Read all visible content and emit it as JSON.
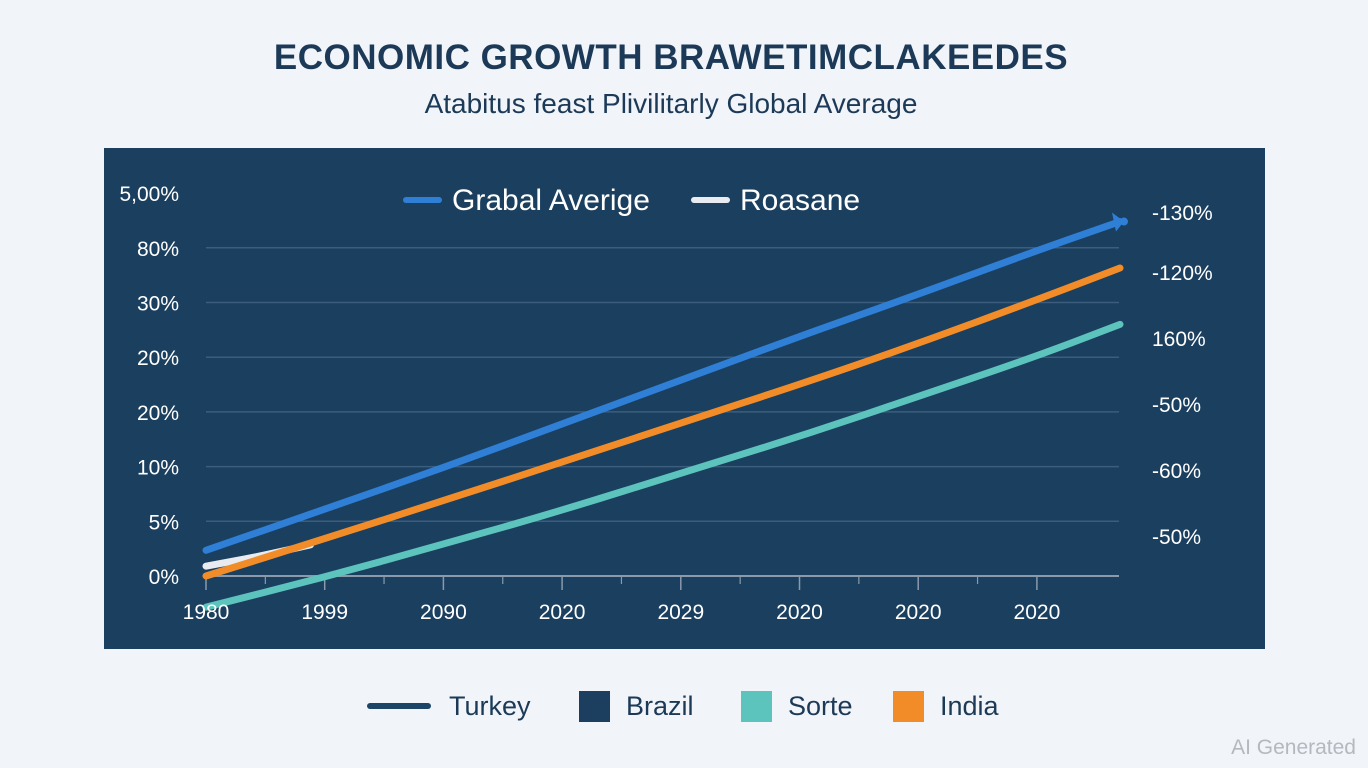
{
  "header": {
    "title": "ECONOMIC GROWTH BRAWETIMCLAKEEDES",
    "subtitle": "Atabitus feast Plivilitarly Global Average"
  },
  "watermark": "AI Generated",
  "colors": {
    "page_bg": "#f1f4f8",
    "panel_bg": "#1b3f5f",
    "global_average": "#2f7fd6",
    "roasane": "#e8ecf1",
    "india": "#f28c28",
    "sorte": "#5cc3bd",
    "brazil": "#1c3f5f",
    "turkey": "#1c4466",
    "grid": "#3c5e7c",
    "axis": "#8a9aab",
    "text_light": "#ffffff",
    "text_dark": "#1c3a57"
  },
  "chart_data": {
    "type": "line",
    "title": "ECONOMIC GROWTH BRAWETIMCLAKEEDES",
    "subtitle": "Atabitus feast Plivilitarly Global Average",
    "xlabel": "",
    "ylabel": "",
    "x_tick_labels": [
      "1980",
      "1999",
      "2090",
      "2020",
      "2029",
      "2020",
      "2020",
      "2020"
    ],
    "y_left_tick_labels": [
      "0%",
      "5%",
      "10%",
      "20%",
      "20%",
      "30%",
      "80%",
      "5,00%"
    ],
    "y_right_tick_labels": [
      "-50%",
      "-60%",
      "-50%",
      "160%",
      "-120%",
      "-130%"
    ],
    "value_scale_note": "series values expressed in left-axis tick-index units (0 = '0%' gridline, 1 = '5%' gridline, ... 6 = '80%' gridline); x in tick-index units (0 = '1980' tick ... 7 = last '2020' tick)",
    "xlim": [
      0,
      7.7
    ],
    "ylim": [
      -1,
      7
    ],
    "grid": true,
    "legend_top": [
      "Grabal Averige",
      "Roasane"
    ],
    "legend_top_position": "top-center",
    "legend_bottom": [
      "Turkey",
      "Brazil",
      "Sorte",
      "India"
    ],
    "legend_bottom_position": "bottom-center",
    "series": [
      {
        "name": "Grabal Averige",
        "color_key": "global_average",
        "end_marker": "arrow",
        "points": [
          [
            0,
            0.47
          ],
          [
            1,
            1.22
          ],
          [
            2,
            1.98
          ],
          [
            3,
            2.78
          ],
          [
            4,
            3.58
          ],
          [
            5,
            4.38
          ],
          [
            6,
            5.15
          ],
          [
            7,
            5.95
          ],
          [
            7.7,
            6.48
          ]
        ]
      },
      {
        "name": "Roasane",
        "color_key": "roasane",
        "points": [
          [
            0,
            0.18
          ],
          [
            0.45,
            0.36
          ],
          [
            0.88,
            0.57
          ]
        ]
      },
      {
        "name": "India",
        "color_key": "india",
        "points": [
          [
            0,
            0.0
          ],
          [
            1,
            0.68
          ],
          [
            2,
            1.38
          ],
          [
            3,
            2.08
          ],
          [
            4,
            2.8
          ],
          [
            5,
            3.5
          ],
          [
            6,
            4.25
          ],
          [
            7,
            5.05
          ],
          [
            7.7,
            5.63
          ]
        ]
      },
      {
        "name": "Sorte",
        "color_key": "sorte",
        "points": [
          [
            0,
            -0.57
          ],
          [
            1,
            -0.02
          ],
          [
            2,
            0.58
          ],
          [
            3,
            1.2
          ],
          [
            4,
            1.88
          ],
          [
            5,
            2.55
          ],
          [
            6,
            3.28
          ],
          [
            7,
            4.02
          ],
          [
            7.7,
            4.6
          ]
        ]
      }
    ]
  }
}
